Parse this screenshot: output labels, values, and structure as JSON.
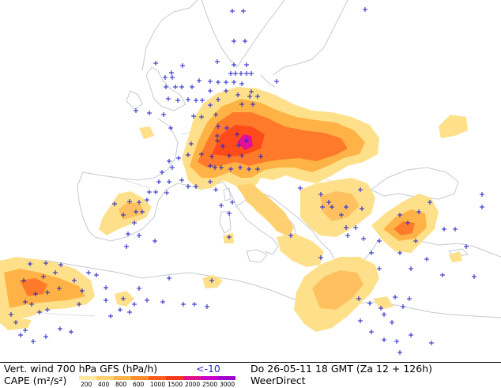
{
  "footer": {
    "vertical_wind_label": "Vert. wind 700 hPa GFS (hPa/h)",
    "threshold_label": "<-10",
    "datetime_label": "Do 26-05-11 18 GMT (Za 12 + 126h)",
    "cape_label": "CAPE (m²/s²)",
    "brand_label": "WeerDirect"
  },
  "legend": {
    "cape_ticks": [
      "200",
      "400",
      "800",
      "600",
      "1000",
      "1500",
      "2000",
      "2500",
      "3000"
    ],
    "cape_colors": [
      "#ffeaa0",
      "#ffd070",
      "#ffb347",
      "#ff8c2a",
      "#ff5a1a",
      "#f03a1a",
      "#e0108a",
      "#c800c8",
      "#a000d0"
    ]
  },
  "colors": {
    "sea": "#ffffff",
    "land": "#ffffff",
    "coastline": "#c8ccd4",
    "marker": "#2222cc"
  },
  "markers_icon": "plus-sign (blue)"
}
